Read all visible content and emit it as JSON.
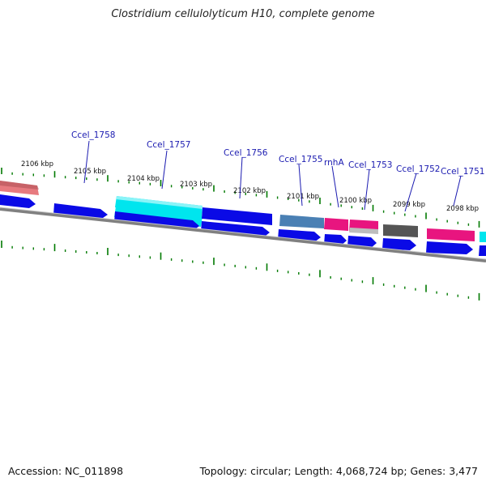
{
  "title": "Clostridium cellulolyticum H10, complete genome",
  "footer": {
    "accession": "Accession: NC_011898",
    "summary": "Topology: circular; Length: 4,068,724 bp; Genes: 3,477"
  },
  "colors": {
    "backbone": "#808080",
    "tick": "#007a00",
    "cds_forward": "#0a0ae6",
    "gene_cyan": "#00e5ee",
    "gene_steel": "#4a80b4",
    "gene_pink": "#e8157f",
    "gene_salmon": "#e77a7f",
    "gene_gray": "#555555",
    "label": "#1a1ab0"
  },
  "scale_labels": [
    "2106 kbp",
    "2105 kbp",
    "2104 kbp",
    "2103 kbp",
    "2102 kbp",
    "2101 kbp",
    "2100 kbp",
    "2099 kbp",
    "2098 kbp"
  ],
  "gene_labels": [
    "Ccel_1758",
    "Ccel_1757",
    "Ccel_1756",
    "Ccel_1755",
    "rnhA",
    "Ccel_1753",
    "Ccel_1752",
    "Ccel_1751"
  ]
}
